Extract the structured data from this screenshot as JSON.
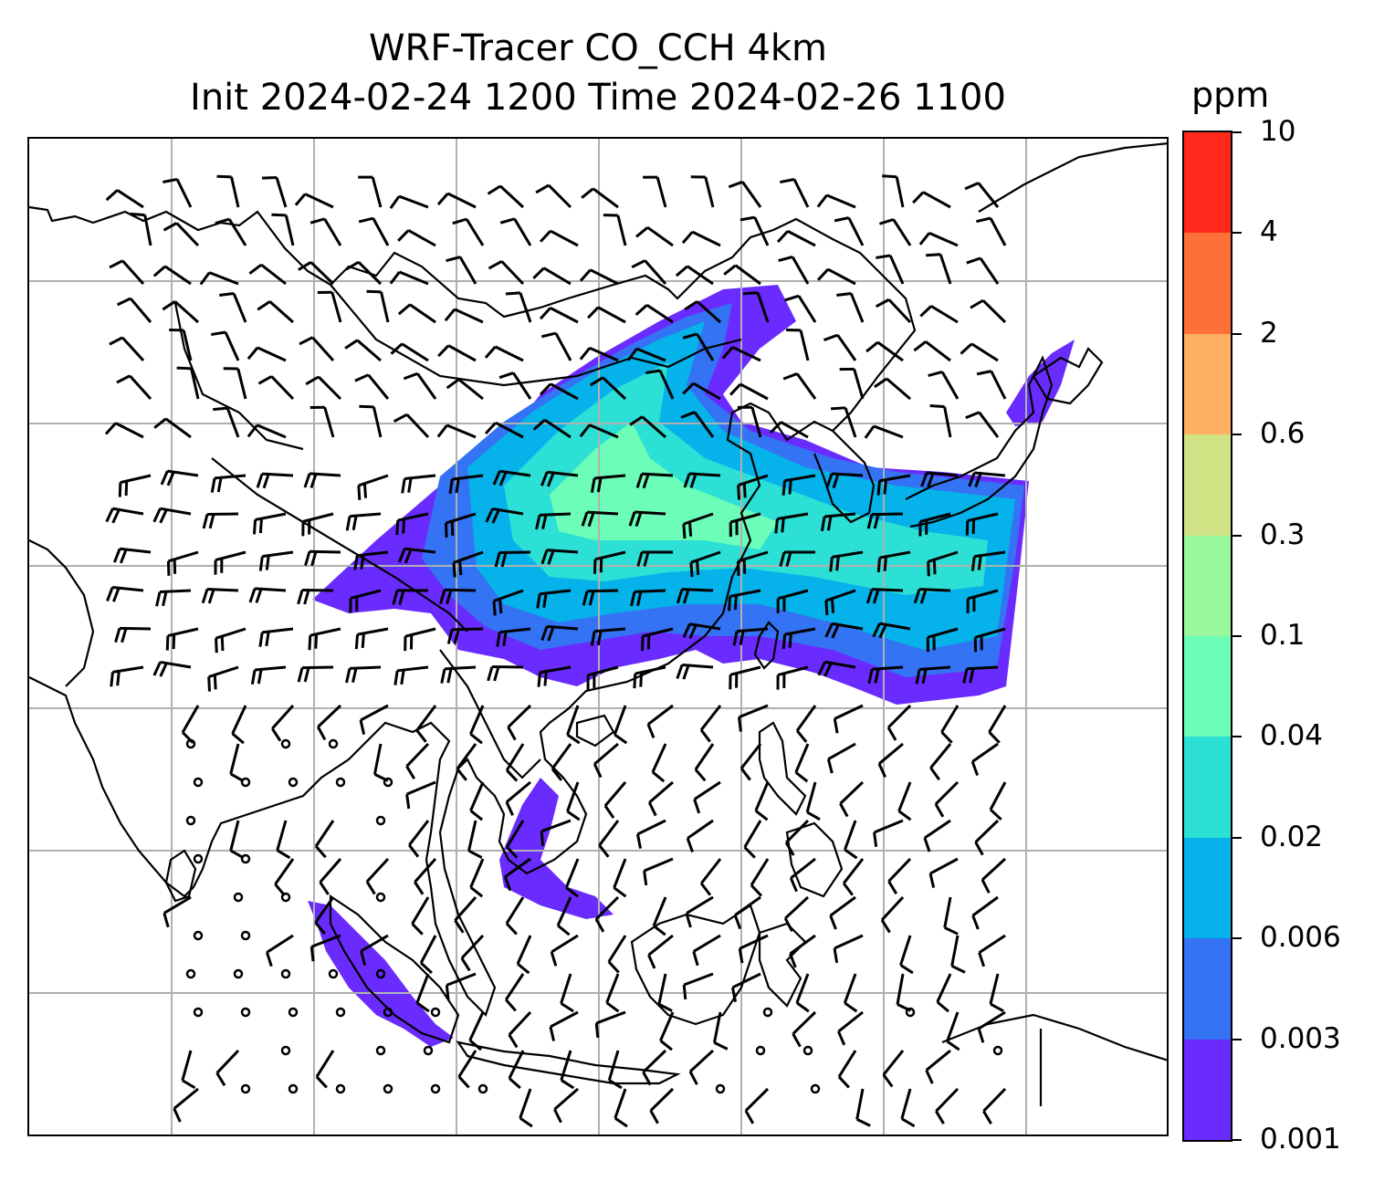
{
  "title": {
    "line1": "WRF-Tracer CO_CCH 4km",
    "line2": "Init 2024-02-24 1200 Time 2024-02-26 1100"
  },
  "colorbar": {
    "unit": "ppm",
    "levels": [
      "0.001",
      "0.003",
      "0.006",
      "0.02",
      "0.04",
      "0.1",
      "0.3",
      "0.6",
      "2",
      "4",
      "10"
    ],
    "colors": [
      "#6a2bff",
      "#3473f3",
      "#06b2ea",
      "#2ce0d6",
      "#30d2d0",
      "#6cfdb9",
      "#99f89b",
      "#d0e384",
      "#fdb05f",
      "#ff6f38",
      "#ff2a1b"
    ],
    "band_colors": [
      "#6a2bff",
      "#3473f3",
      "#06b2ea",
      "#2ce0d6",
      "#6cfdb9",
      "#99f89b",
      "#d0e384",
      "#fdb05f",
      "#ff6f38",
      "#ff2a1b"
    ]
  },
  "map": {
    "region": "East and Southeast Asia",
    "gridlines": true,
    "overlay": "wind barbs",
    "plume_colors": {
      "outer": "#6a2bff",
      "mid": "#3473f3",
      "inner": "#06b2ea",
      "core": "#2ce0d6",
      "peak": "#6cfdb9"
    }
  }
}
